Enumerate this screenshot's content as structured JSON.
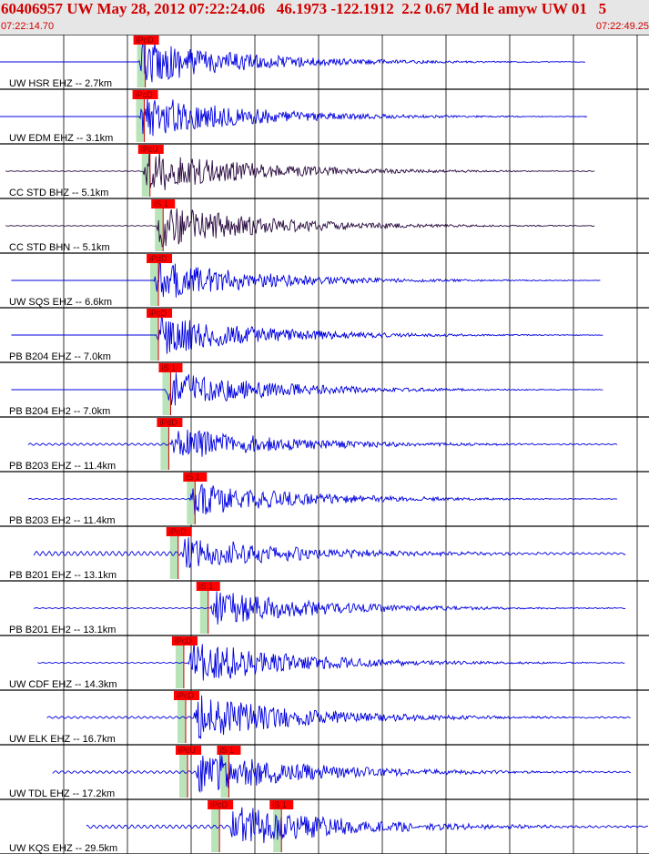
{
  "header": {
    "title": "60406957 UW May 28, 2012 07:22:24.06   46.1973 -122.1912  2.2 0.67 Md le amyw UW 01   5",
    "start_time": "07:22:14.70",
    "end_time": "07:22:49.25"
  },
  "colors": {
    "header_bg": "#e6e6e6",
    "time_text": "#d00000",
    "pick_bg": "#ff0000",
    "pick_text": "#800000",
    "pick_window": "#b9e3b9",
    "trace_blue": "#0000e0",
    "trace_dark": "#2a0a40",
    "grid": "#000000"
  },
  "chart_data": {
    "type": "line",
    "title": "60406957 UW May 28, 2012 07:22:24.06   46.1973 -122.1912  2.2 0.67 Md le amyw UW 01   5",
    "x_range": [
      "07:22:14.70",
      "07:22:49.25"
    ],
    "x_span_seconds": 34.55,
    "grid": true,
    "series": [
      {
        "name": "UW HSR EHZ -- 2.7km",
        "color": "#0000e0",
        "start": 0.0,
        "end": 31.2,
        "onset": 7.4,
        "pick_time": 7.25,
        "pick_label": "iPcD",
        "s_time": null,
        "s_label": null,
        "amp": 1.0,
        "pre_amp": 0.0,
        "flat_start": true
      },
      {
        "name": "UW EDM EHZ -- 3.1km",
        "color": "#0000e0",
        "start": 0.0,
        "end": 31.3,
        "onset": 7.4,
        "pick_time": 7.2,
        "pick_label": "iPcD",
        "s_time": null,
        "s_label": null,
        "amp": 1.0,
        "pre_amp": 0.0,
        "flat_start": true
      },
      {
        "name": "CC STD BHZ -- 5.1km",
        "color": "#2a0a40",
        "start": 0.3,
        "end": 31.7,
        "onset": 7.6,
        "pick_time": 7.5,
        "pick_label": "iPcU",
        "s_time": null,
        "s_label": null,
        "amp": 1.0,
        "pre_amp": 0.015,
        "flat_start": false
      },
      {
        "name": "CC STD BHN -- 5.1km",
        "color": "#2a0a40",
        "start": 0.3,
        "end": 31.7,
        "onset": 8.3,
        "pick_time": null,
        "pick_label": null,
        "s_time": 8.2,
        "s_label": "iS 1",
        "amp": 1.0,
        "pre_amp": 0.015,
        "flat_start": false
      },
      {
        "name": "UW SQS EHZ -- 6.6km",
        "color": "#0000e0",
        "start": 0.6,
        "end": 32.0,
        "onset": 8.2,
        "pick_time": 7.95,
        "pick_label": "iPdD",
        "s_time": null,
        "s_label": null,
        "amp": 0.9,
        "pre_amp": 0.0,
        "flat_start": true
      },
      {
        "name": "PB B204 EHZ -- 7.0km",
        "color": "#0000e0",
        "start": 0.6,
        "end": 32.1,
        "onset": 8.3,
        "pick_time": 7.95,
        "pick_label": "iPcD",
        "s_time": null,
        "s_label": null,
        "amp": 0.9,
        "pre_amp": 0.0,
        "flat_start": true
      },
      {
        "name": "PB B204 EH2 -- 7.0km",
        "color": "#0000e0",
        "start": 0.6,
        "end": 32.1,
        "onset": 8.8,
        "pick_time": null,
        "pick_label": null,
        "s_time": 8.6,
        "s_label": "iS 1",
        "amp": 0.85,
        "pre_amp": 0.0,
        "flat_start": true
      },
      {
        "name": "PB B203 EHZ -- 11.4km",
        "color": "#0000e0",
        "start": 1.5,
        "end": 32.9,
        "onset": 9.1,
        "pick_time": 8.5,
        "pick_label": "iPdD",
        "s_time": null,
        "s_label": null,
        "amp": 0.8,
        "pre_amp": 0.05,
        "flat_start": false
      },
      {
        "name": "PB B203 EH2 -- 11.4km",
        "color": "#0000e0",
        "start": 1.5,
        "end": 32.9,
        "onset": 10.1,
        "pick_time": null,
        "pick_label": null,
        "s_time": 9.9,
        "s_label": "iS 1",
        "amp": 0.8,
        "pre_amp": 0.02,
        "flat_start": false
      },
      {
        "name": "PB B201 EHZ -- 13.1km",
        "color": "#0000e0",
        "start": 1.8,
        "end": 33.3,
        "onset": 9.6,
        "pick_time": 9.0,
        "pick_label": "iPcD",
        "s_time": null,
        "s_label": null,
        "amp": 0.8,
        "pre_amp": 0.1,
        "flat_start": false
      },
      {
        "name": "PB B201 EH2 -- 13.1km",
        "color": "#0000e0",
        "start": 1.8,
        "end": 33.3,
        "onset": 11.2,
        "pick_time": null,
        "pick_label": null,
        "s_time": 10.6,
        "s_label": "iS 1",
        "amp": 0.8,
        "pre_amp": 0.02,
        "flat_start": false
      },
      {
        "name": "UW CDF EHZ -- 14.3km",
        "color": "#0000e0",
        "start": 2.0,
        "end": 33.3,
        "onset": 10.0,
        "pick_time": 9.3,
        "pick_label": "iPcD",
        "s_time": null,
        "s_label": null,
        "amp": 1.0,
        "pre_amp": 0.02,
        "flat_start": false
      },
      {
        "name": "UW ELK EHZ -- 16.7km",
        "color": "#0000e0",
        "start": 2.5,
        "end": 33.6,
        "onset": 10.3,
        "pick_time": 9.4,
        "pick_label": "iPcD",
        "s_time": null,
        "s_label": null,
        "amp": 1.0,
        "pre_amp": 0.05,
        "flat_start": false
      },
      {
        "name": "UW TDL EHZ -- 17.2km",
        "color": "#0000e0",
        "start": 2.8,
        "end": 33.6,
        "onset": 10.4,
        "pick_time": 9.5,
        "pick_label": "iPcU",
        "s_time": 11.7,
        "s_label": "iS 1",
        "amp": 1.0,
        "pre_amp": 0.06,
        "flat_start": false
      },
      {
        "name": "UW KQS EHZ -- 29.5km",
        "color": "#0000e0",
        "start": 4.6,
        "end": 34.5,
        "onset": 12.2,
        "pick_time": 11.2,
        "pick_label": "iPcD",
        "s_time": 14.5,
        "s_label": "iS 1",
        "amp": 1.0,
        "pre_amp": 0.08,
        "flat_start": false
      }
    ]
  }
}
